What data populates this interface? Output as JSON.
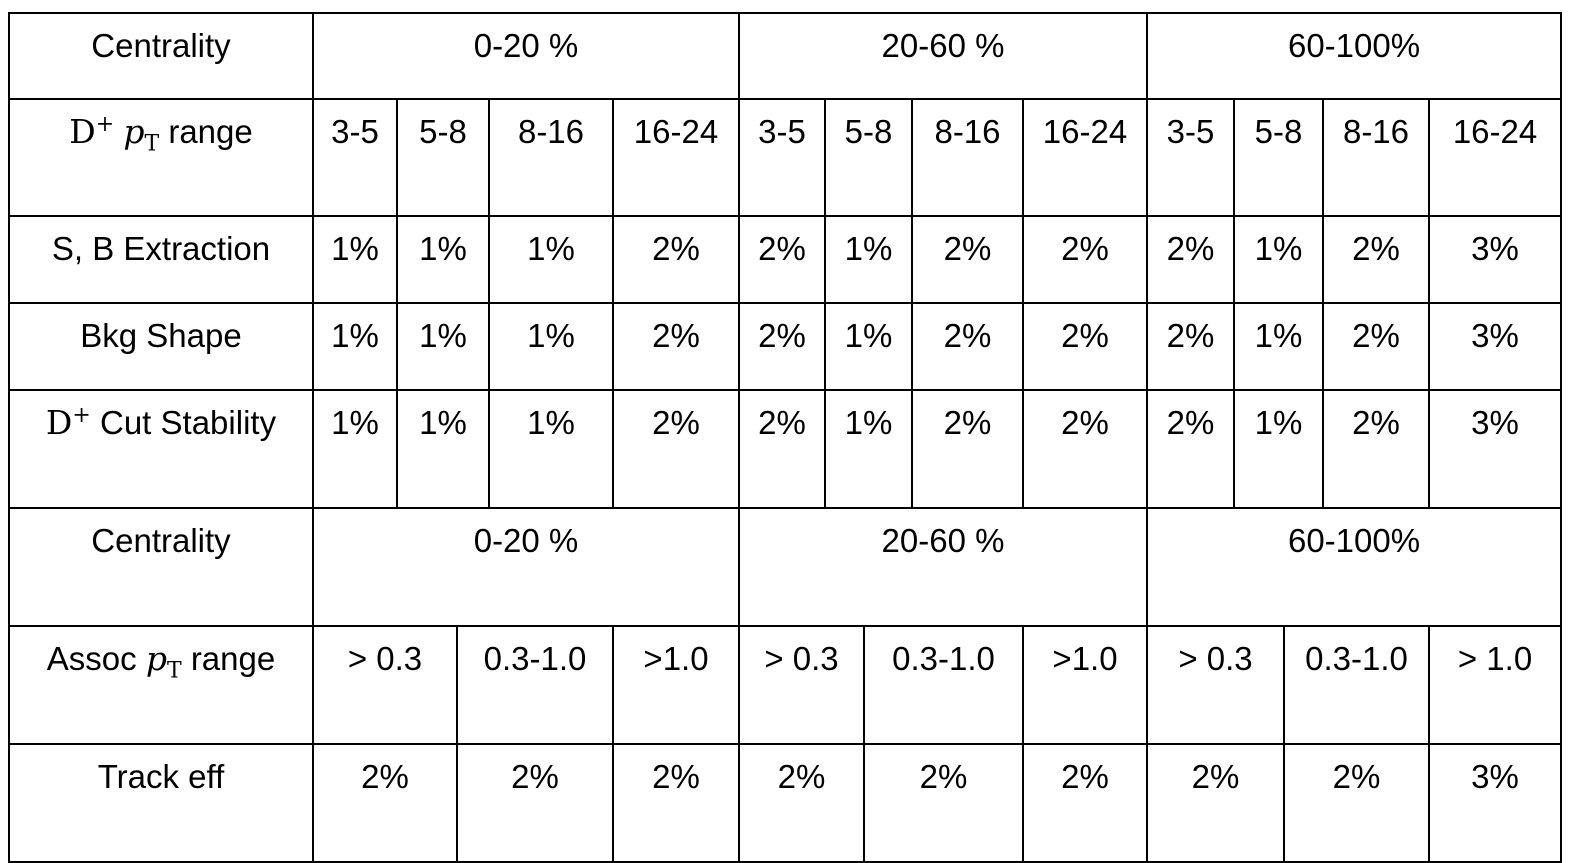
{
  "table": {
    "centrality_label": "Centrality",
    "centralities": [
      "0-20 %",
      "20-60 %",
      "60-100%"
    ],
    "dplus_pt": {
      "D": "D",
      "sup": "+",
      "p": "p",
      "T": "T",
      "rest": "range"
    },
    "dplus_bins": [
      "3-5",
      "5-8",
      "8-16",
      "16-24",
      "3-5",
      "5-8",
      "8-16",
      "16-24",
      "3-5",
      "5-8",
      "8-16",
      "16-24"
    ],
    "rows": [
      {
        "label": "S, B Extraction",
        "values": [
          "1%",
          "1%",
          "1%",
          "2%",
          "2%",
          "1%",
          "2%",
          "2%",
          "2%",
          "1%",
          "2%",
          "3%"
        ]
      },
      {
        "label": "Bkg Shape",
        "values": [
          "1%",
          "1%",
          "1%",
          "2%",
          "2%",
          "1%",
          "2%",
          "2%",
          "2%",
          "1%",
          "2%",
          "3%"
        ]
      }
    ],
    "cut_stability": {
      "D": "D",
      "sup": "+",
      "rest": "Cut Stability",
      "values": [
        "1%",
        "1%",
        "1%",
        "2%",
        "2%",
        "1%",
        "2%",
        "2%",
        "2%",
        "1%",
        "2%",
        "3%"
      ]
    },
    "assoc_pt": {
      "pre": "Assoc",
      "p": "p",
      "T": "T",
      "rest": "range"
    },
    "assoc_bins": [
      "> 0.3",
      "0.3-1.0",
      ">1.0",
      "> 0.3",
      "0.3-1.0",
      ">1.0",
      "> 0.3",
      "0.3-1.0",
      "> 1.0"
    ],
    "track_eff": {
      "label": "Track eff",
      "values": [
        "2%",
        "2%",
        "2%",
        "2%",
        "2%",
        "2%",
        "2%",
        "2%",
        "3%"
      ]
    }
  }
}
